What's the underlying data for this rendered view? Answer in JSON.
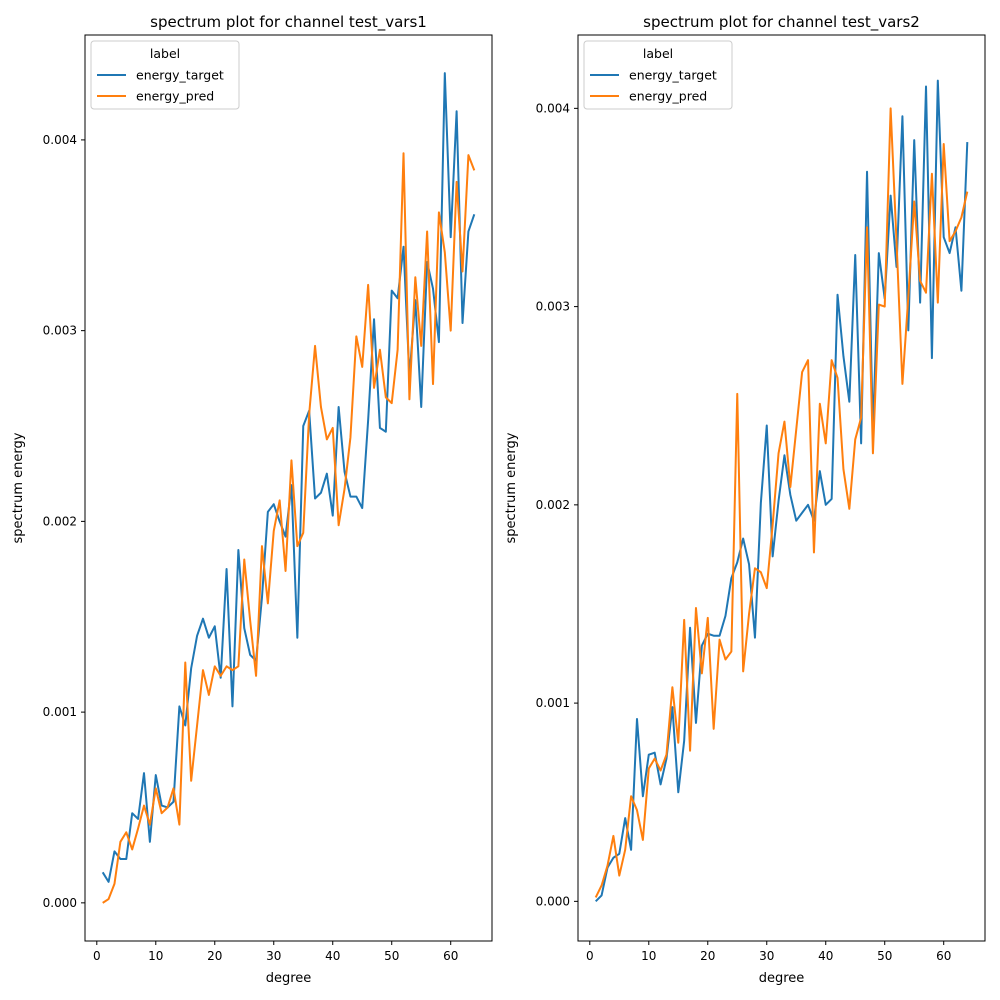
{
  "colors": {
    "energy_target": "#1f77b4",
    "energy_pred": "#ff7f0e"
  },
  "chart_data": [
    {
      "type": "line",
      "title": "spectrum plot for channel test_vars1",
      "xlabel": "degree",
      "ylabel": "spectrum energy",
      "xlim": [
        -2,
        67
      ],
      "ylim": [
        -0.0002,
        0.00455
      ],
      "xticks": [
        0,
        10,
        20,
        30,
        40,
        50,
        60
      ],
      "yticks": [
        0.0,
        0.001,
        0.002,
        0.003,
        0.004
      ],
      "ytick_labels": [
        "0.000",
        "0.001",
        "0.002",
        "0.003",
        "0.004"
      ],
      "legend": {
        "title": "label",
        "position": "top-left"
      },
      "x": [
        1,
        2,
        3,
        4,
        5,
        6,
        7,
        8,
        9,
        10,
        11,
        12,
        13,
        14,
        15,
        16,
        17,
        18,
        19,
        20,
        21,
        22,
        23,
        24,
        25,
        26,
        27,
        28,
        29,
        30,
        31,
        32,
        33,
        34,
        35,
        36,
        37,
        38,
        39,
        40,
        41,
        42,
        43,
        44,
        45,
        46,
        47,
        48,
        49,
        50,
        51,
        52,
        53,
        54,
        55,
        56,
        57,
        58,
        59,
        60,
        61,
        62,
        63,
        64
      ],
      "series": [
        {
          "name": "energy_target",
          "values": [
            0.00016,
            0.00011,
            0.00027,
            0.00023,
            0.00023,
            0.00047,
            0.00044,
            0.00068,
            0.00032,
            0.00067,
            0.00051,
            0.0005,
            0.00053,
            0.00103,
            0.00093,
            0.00123,
            0.0014,
            0.00149,
            0.00139,
            0.00145,
            0.00118,
            0.00175,
            0.00103,
            0.00185,
            0.00144,
            0.0013,
            0.00127,
            0.0016,
            0.00205,
            0.00209,
            0.002,
            0.00192,
            0.00219,
            0.00139,
            0.0025,
            0.00258,
            0.00212,
            0.00215,
            0.00225,
            0.00203,
            0.0026,
            0.00226,
            0.00213,
            0.00213,
            0.00207,
            0.00253,
            0.00306,
            0.00249,
            0.00247,
            0.00321,
            0.00317,
            0.00344,
            0.00276,
            0.00316,
            0.0026,
            0.00336,
            0.00322,
            0.00294,
            0.00435,
            0.00349,
            0.00415,
            0.00304,
            0.00352,
            0.00361
          ]
        },
        {
          "name": "energy_pred",
          "values": [
            0.0,
            2e-05,
            0.0001,
            0.00032,
            0.00037,
            0.00028,
            0.00039,
            0.00051,
            0.00041,
            0.0006,
            0.00047,
            0.0005,
            0.0006,
            0.00041,
            0.00126,
            0.00064,
            0.00093,
            0.00122,
            0.00109,
            0.00124,
            0.00119,
            0.00124,
            0.00122,
            0.00124,
            0.0018,
            0.00148,
            0.00119,
            0.00187,
            0.00157,
            0.00195,
            0.00211,
            0.00174,
            0.00232,
            0.00187,
            0.00194,
            0.00256,
            0.00292,
            0.0026,
            0.00243,
            0.00249,
            0.00198,
            0.00217,
            0.00244,
            0.00297,
            0.00281,
            0.00324,
            0.0027,
            0.0029,
            0.00265,
            0.00262,
            0.0029,
            0.00393,
            0.00264,
            0.00328,
            0.00292,
            0.00352,
            0.00272,
            0.00362,
            0.00341,
            0.003,
            0.00378,
            0.00331,
            0.00392,
            0.00384
          ]
        }
      ]
    },
    {
      "type": "line",
      "title": "spectrum plot for channel test_vars2",
      "xlabel": "degree",
      "ylabel": "spectrum energy",
      "xlim": [
        -2,
        67
      ],
      "ylim": [
        -0.0002,
        0.00437
      ],
      "xticks": [
        0,
        10,
        20,
        30,
        40,
        50,
        60
      ],
      "yticks": [
        0.0,
        0.001,
        0.002,
        0.003,
        0.004
      ],
      "ytick_labels": [
        "0.000",
        "0.001",
        "0.002",
        "0.003",
        "0.004"
      ],
      "legend": {
        "title": "label",
        "position": "top-left"
      },
      "x": [
        1,
        2,
        3,
        4,
        5,
        6,
        7,
        8,
        9,
        10,
        11,
        12,
        13,
        14,
        15,
        16,
        17,
        18,
        19,
        20,
        21,
        22,
        23,
        24,
        25,
        26,
        27,
        28,
        29,
        30,
        31,
        32,
        33,
        34,
        35,
        36,
        37,
        38,
        39,
        40,
        41,
        42,
        43,
        44,
        45,
        46,
        47,
        48,
        49,
        50,
        51,
        52,
        53,
        54,
        55,
        56,
        57,
        58,
        59,
        60,
        61,
        62,
        63,
        64
      ],
      "series": [
        {
          "name": "energy_target",
          "values": [
            0.0,
            3e-05,
            0.00017,
            0.00022,
            0.00024,
            0.00042,
            0.00026,
            0.00092,
            0.00053,
            0.00074,
            0.00075,
            0.00059,
            0.00072,
            0.00098,
            0.00055,
            0.00081,
            0.00138,
            0.0009,
            0.00129,
            0.00135,
            0.00134,
            0.00134,
            0.00144,
            0.00163,
            0.00171,
            0.00183,
            0.0017,
            0.00133,
            0.00201,
            0.0024,
            0.00174,
            0.00202,
            0.00225,
            0.00205,
            0.00192,
            0.00196,
            0.002,
            0.00192,
            0.00217,
            0.002,
            0.00203,
            0.00306,
            0.00275,
            0.00252,
            0.00326,
            0.00231,
            0.00368,
            0.00237,
            0.00327,
            0.00304,
            0.00356,
            0.0032,
            0.00396,
            0.00288,
            0.00384,
            0.00302,
            0.00411,
            0.00274,
            0.00414,
            0.00335,
            0.00327,
            0.0034,
            0.00308,
            0.00383
          ]
        },
        {
          "name": "energy_pred",
          "values": [
            2e-05,
            8e-05,
            0.00018,
            0.00033,
            0.00013,
            0.00026,
            0.00053,
            0.00046,
            0.00031,
            0.00067,
            0.00072,
            0.00066,
            0.00074,
            0.00108,
            0.0008,
            0.00142,
            0.00076,
            0.00148,
            0.00115,
            0.00143,
            0.00087,
            0.00132,
            0.00122,
            0.00126,
            0.00256,
            0.00116,
            0.00145,
            0.00168,
            0.00166,
            0.00158,
            0.0019,
            0.00226,
            0.00242,
            0.00209,
            0.00238,
            0.00267,
            0.00273,
            0.00176,
            0.00251,
            0.00231,
            0.00273,
            0.00264,
            0.00218,
            0.00198,
            0.00233,
            0.00244,
            0.0034,
            0.00226,
            0.00301,
            0.003,
            0.004,
            0.00333,
            0.00261,
            0.00305,
            0.00353,
            0.00313,
            0.00307,
            0.00367,
            0.00302,
            0.00382,
            0.00333,
            0.00338,
            0.00345,
            0.00358
          ]
        }
      ]
    }
  ]
}
